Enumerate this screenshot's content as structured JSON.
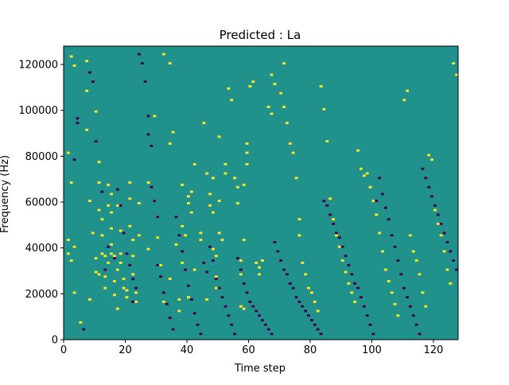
{
  "chart_data": {
    "type": "heatmap",
    "title": "Predicted : La",
    "xlabel": "Time step",
    "ylabel": "Frequency (Hz)",
    "xlim": [
      0,
      128
    ],
    "ylim": [
      0,
      128000
    ],
    "xticks": [
      0,
      20,
      40,
      60,
      80,
      100,
      120
    ],
    "xtick_labels": [
      "0",
      "20",
      "40",
      "60",
      "80",
      "100",
      "120"
    ],
    "yticks": [
      0,
      20000,
      40000,
      60000,
      80000,
      100000,
      120000
    ],
    "ytick_labels": [
      "0",
      "20000",
      "40000",
      "60000",
      "80000",
      "100000",
      "120000"
    ],
    "grid": false,
    "colors": {
      "low": "#440154",
      "mid": "#21918c",
      "high": "#fde725"
    },
    "value_levels": {
      "low": -1,
      "mid": 0,
      "high": 1
    },
    "background_value": 0,
    "cell_size": {
      "time_step": 1,
      "frequency_hz": 1000
    },
    "high_cells": [
      [
        2,
        123
      ],
      [
        3,
        119
      ],
      [
        1,
        81
      ],
      [
        2,
        68
      ],
      [
        1,
        43
      ],
      [
        1,
        37
      ],
      [
        2,
        34
      ],
      [
        3,
        40
      ],
      [
        3,
        20
      ],
      [
        5,
        7
      ],
      [
        7,
        121
      ],
      [
        7,
        108
      ],
      [
        7,
        91
      ],
      [
        8,
        60
      ],
      [
        8,
        17
      ],
      [
        9,
        46
      ],
      [
        10,
        35
      ],
      [
        10,
        99
      ],
      [
        10,
        29
      ],
      [
        11,
        28
      ],
      [
        11,
        77
      ],
      [
        11,
        68
      ],
      [
        11,
        56
      ],
      [
        12,
        52
      ],
      [
        12,
        45
      ],
      [
        12,
        37
      ],
      [
        13,
        36
      ],
      [
        13,
        27
      ],
      [
        13,
        22
      ],
      [
        14,
        33
      ],
      [
        14,
        67
      ],
      [
        14,
        58
      ],
      [
        15,
        63
      ],
      [
        15,
        55
      ],
      [
        15,
        48
      ],
      [
        15,
        41
      ],
      [
        15,
        37
      ],
      [
        16,
        36
      ],
      [
        16,
        25
      ],
      [
        16,
        19
      ],
      [
        17,
        58
      ],
      [
        17,
        30
      ],
      [
        17,
        13
      ],
      [
        18,
        47
      ],
      [
        18,
        37
      ],
      [
        18,
        33
      ],
      [
        19,
        26
      ],
      [
        19,
        22
      ],
      [
        20,
        21
      ],
      [
        20,
        18
      ],
      [
        21,
        68
      ],
      [
        21,
        61
      ],
      [
        21,
        49
      ],
      [
        22,
        43
      ],
      [
        22,
        36
      ],
      [
        22,
        28
      ],
      [
        23,
        20
      ],
      [
        23,
        16
      ],
      [
        24,
        59
      ],
      [
        24,
        45
      ],
      [
        27,
        68
      ],
      [
        27,
        39
      ],
      [
        29,
        97
      ],
      [
        29,
        60
      ],
      [
        30,
        53
      ],
      [
        30,
        44
      ],
      [
        31,
        32
      ],
      [
        32,
        124
      ],
      [
        32,
        16
      ],
      [
        34,
        120
      ],
      [
        34,
        85
      ],
      [
        34,
        26
      ],
      [
        35,
        90
      ],
      [
        36,
        41
      ],
      [
        37,
        17
      ],
      [
        37,
        12
      ],
      [
        38,
        67
      ],
      [
        38,
        49
      ],
      [
        38,
        33
      ],
      [
        39,
        45
      ],
      [
        40,
        59
      ],
      [
        40,
        62
      ],
      [
        40,
        18
      ],
      [
        41,
        64
      ],
      [
        41,
        55
      ],
      [
        42,
        76
      ],
      [
        42,
        30
      ],
      [
        44,
        46
      ],
      [
        44,
        43
      ],
      [
        45,
        94
      ],
      [
        46,
        72
      ],
      [
        46,
        17
      ],
      [
        47,
        63
      ],
      [
        47,
        58
      ],
      [
        48,
        70
      ],
      [
        48,
        55
      ],
      [
        48,
        39
      ],
      [
        49,
        36
      ],
      [
        49,
        27
      ],
      [
        49,
        22
      ],
      [
        50,
        88
      ],
      [
        50,
        60
      ],
      [
        50,
        46
      ],
      [
        51,
        43
      ],
      [
        52,
        76
      ],
      [
        52,
        72
      ],
      [
        53,
        109
      ],
      [
        54,
        104
      ],
      [
        55,
        70
      ],
      [
        56,
        66
      ],
      [
        56,
        59
      ],
      [
        57,
        34
      ],
      [
        57,
        28
      ],
      [
        57,
        14
      ],
      [
        58,
        67
      ],
      [
        58,
        43
      ],
      [
        58,
        13
      ],
      [
        59,
        85
      ],
      [
        59,
        81
      ],
      [
        59,
        76
      ],
      [
        60,
        110
      ],
      [
        61,
        112
      ],
      [
        62,
        33
      ],
      [
        63,
        28
      ],
      [
        63,
        31
      ],
      [
        64,
        34
      ],
      [
        66,
        101
      ],
      [
        67,
        98
      ],
      [
        67,
        115
      ],
      [
        68,
        111
      ],
      [
        70,
        107
      ],
      [
        71,
        120
      ],
      [
        71,
        101
      ],
      [
        72,
        94
      ],
      [
        73,
        85
      ],
      [
        74,
        81
      ],
      [
        75,
        70
      ],
      [
        76,
        52
      ],
      [
        76,
        45
      ],
      [
        77,
        33
      ],
      [
        78,
        28
      ],
      [
        79,
        22
      ],
      [
        80,
        20
      ],
      [
        81,
        16
      ],
      [
        82,
        12
      ],
      [
        83,
        110
      ],
      [
        84,
        100
      ],
      [
        85,
        86
      ],
      [
        86,
        61
      ],
      [
        87,
        52
      ],
      [
        88,
        45
      ],
      [
        89,
        40
      ],
      [
        90,
        34
      ],
      [
        91,
        29
      ],
      [
        92,
        24
      ],
      [
        93,
        20
      ],
      [
        94,
        16
      ],
      [
        95,
        82
      ],
      [
        96,
        74
      ],
      [
        97,
        71
      ],
      [
        98,
        72
      ],
      [
        99,
        66
      ],
      [
        100,
        60
      ],
      [
        101,
        54
      ],
      [
        102,
        46
      ],
      [
        103,
        38
      ],
      [
        104,
        30
      ],
      [
        105,
        25
      ],
      [
        106,
        20
      ],
      [
        107,
        15
      ],
      [
        108,
        10
      ],
      [
        110,
        104
      ],
      [
        111,
        108
      ],
      [
        112,
        45
      ],
      [
        113,
        38
      ],
      [
        114,
        34
      ],
      [
        115,
        28
      ],
      [
        116,
        20
      ],
      [
        117,
        14
      ],
      [
        118,
        80
      ],
      [
        119,
        78
      ],
      [
        120,
        56
      ],
      [
        121,
        50
      ],
      [
        122,
        45
      ],
      [
        123,
        38
      ],
      [
        124,
        30
      ],
      [
        125,
        24
      ],
      [
        126,
        120
      ],
      [
        127,
        115
      ]
    ],
    "low_cells": [
      [
        3,
        78
      ],
      [
        4,
        96
      ],
      [
        4,
        94
      ],
      [
        6,
        4
      ],
      [
        8,
        116
      ],
      [
        9,
        112
      ],
      [
        10,
        86
      ],
      [
        12,
        64
      ],
      [
        13,
        30
      ],
      [
        14,
        40
      ],
      [
        16,
        35
      ],
      [
        17,
        65
      ],
      [
        18,
        58
      ],
      [
        19,
        46
      ],
      [
        20,
        37
      ],
      [
        21,
        32
      ],
      [
        22,
        26
      ],
      [
        22,
        16
      ],
      [
        23,
        22
      ],
      [
        24,
        124
      ],
      [
        25,
        120
      ],
      [
        26,
        112
      ],
      [
        27,
        97
      ],
      [
        27,
        89
      ],
      [
        28,
        84
      ],
      [
        28,
        66
      ],
      [
        29,
        60
      ],
      [
        30,
        53
      ],
      [
        30,
        32
      ],
      [
        31,
        27
      ],
      [
        32,
        20
      ],
      [
        33,
        15
      ],
      [
        34,
        9
      ],
      [
        35,
        4
      ],
      [
        36,
        53
      ],
      [
        37,
        45
      ],
      [
        38,
        38
      ],
      [
        39,
        30
      ],
      [
        40,
        23
      ],
      [
        41,
        17
      ],
      [
        42,
        11
      ],
      [
        43,
        6
      ],
      [
        44,
        2
      ],
      [
        45,
        33
      ],
      [
        46,
        29
      ],
      [
        47,
        40
      ],
      [
        48,
        34
      ],
      [
        49,
        26
      ],
      [
        50,
        22
      ],
      [
        51,
        18
      ],
      [
        52,
        14
      ],
      [
        53,
        10
      ],
      [
        54,
        6
      ],
      [
        55,
        2
      ],
      [
        56,
        35
      ],
      [
        57,
        30
      ],
      [
        58,
        24
      ],
      [
        59,
        20
      ],
      [
        60,
        16
      ],
      [
        61,
        14
      ],
      [
        62,
        12
      ],
      [
        63,
        10
      ],
      [
        64,
        8
      ],
      [
        65,
        6
      ],
      [
        66,
        4
      ],
      [
        67,
        2
      ],
      [
        68,
        42
      ],
      [
        69,
        38
      ],
      [
        70,
        34
      ],
      [
        71,
        30
      ],
      [
        72,
        28
      ],
      [
        73,
        24
      ],
      [
        74,
        22
      ],
      [
        75,
        18
      ],
      [
        76,
        16
      ],
      [
        77,
        14
      ],
      [
        78,
        12
      ],
      [
        79,
        10
      ],
      [
        80,
        8
      ],
      [
        81,
        6
      ],
      [
        82,
        4
      ],
      [
        83,
        2
      ],
      [
        84,
        60
      ],
      [
        85,
        58
      ],
      [
        86,
        54
      ],
      [
        87,
        50
      ],
      [
        88,
        46
      ],
      [
        89,
        44
      ],
      [
        90,
        40
      ],
      [
        91,
        36
      ],
      [
        92,
        32
      ],
      [
        93,
        28
      ],
      [
        94,
        24
      ],
      [
        95,
        22
      ],
      [
        96,
        18
      ],
      [
        97,
        14
      ],
      [
        98,
        10
      ],
      [
        99,
        6
      ],
      [
        100,
        2
      ],
      [
        101,
        60
      ],
      [
        102,
        70
      ],
      [
        103,
        63
      ],
      [
        104,
        57
      ],
      [
        105,
        52
      ],
      [
        106,
        45
      ],
      [
        107,
        40
      ],
      [
        108,
        34
      ],
      [
        109,
        28
      ],
      [
        110,
        22
      ],
      [
        111,
        18
      ],
      [
        112,
        14
      ],
      [
        113,
        10
      ],
      [
        114,
        6
      ],
      [
        115,
        2
      ],
      [
        116,
        74
      ],
      [
        117,
        70
      ],
      [
        118,
        66
      ],
      [
        119,
        62
      ],
      [
        120,
        58
      ],
      [
        121,
        54
      ],
      [
        122,
        50
      ],
      [
        123,
        46
      ],
      [
        124,
        42
      ],
      [
        125,
        38
      ],
      [
        126,
        34
      ],
      [
        127,
        30
      ]
    ]
  }
}
